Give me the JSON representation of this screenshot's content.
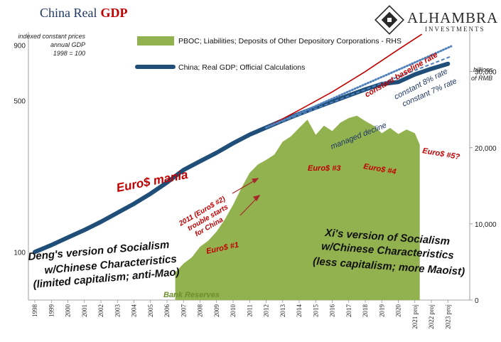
{
  "title": {
    "part1": "China Real",
    "part2": "GDP"
  },
  "logo": {
    "name": "ALHAMBRA",
    "sub": "INVESTMENTS"
  },
  "note_lines": [
    "indexed constant prices",
    "annual GDP",
    "1998 = 100"
  ],
  "right_axis_note": [
    "billions",
    "of RMB"
  ],
  "chart_data": {
    "type": "line",
    "title": "China Real GDP",
    "categories": [
      "1998",
      "1999",
      "2000",
      "2001",
      "2002",
      "2003",
      "2004",
      "2005",
      "2006",
      "2007",
      "2008",
      "2009",
      "2010",
      "2011",
      "2012",
      "2013",
      "2014",
      "2015",
      "2016",
      "2017",
      "2018",
      "2019",
      "2020",
      "2021 proj",
      "2022 proj",
      "2023 proj"
    ],
    "left_axis": {
      "scale": "log",
      "range": [
        60,
        1300
      ],
      "ticks": [
        100,
        500,
        900
      ]
    },
    "right_axis": {
      "range": [
        0,
        38000
      ],
      "ticks": [
        0,
        10000,
        20000,
        30000
      ]
    },
    "series": [
      {
        "name": "China; Real GDP; Official Calculations",
        "axis": "left",
        "color": "#1f4e79",
        "values": [
          100,
          107.6,
          116.7,
          126.3,
          137.8,
          151.6,
          166.9,
          185.9,
          209.4,
          239.2,
          262.3,
          287.1,
          317.6,
          347.9,
          375.2,
          404.4,
          434.0,
          464.0,
          494.9,
          528.0,
          563.0,
          596.0,
          609.0,
          660.0,
          701.0,
          739.0
        ]
      },
      {
        "name": "PBOC; Liabilities; Deposits of Other Depository Corporations - RHS",
        "axis": "right",
        "color": "#92b250",
        "type": "area",
        "x": [
          2006.5,
          2007,
          2007.5,
          2008,
          2008.5,
          2009,
          2009.5,
          2010,
          2010.5,
          2011,
          2011.5,
          2012,
          2012.5,
          2013,
          2013.5,
          2014,
          2014.5,
          2015,
          2015.5,
          2016,
          2016.5,
          2017,
          2017.5,
          2018,
          2018.5,
          2019,
          2019.5,
          2020,
          2020.5,
          2021,
          2021.3
        ],
        "values": [
          3600,
          4800,
          5600,
          7000,
          7800,
          9000,
          10600,
          12500,
          14700,
          16700,
          17800,
          18400,
          19100,
          20800,
          21500,
          22600,
          23700,
          21700,
          22900,
          22200,
          23300,
          23900,
          24200,
          23500,
          22900,
          21900,
          22600,
          21800,
          22400,
          21900,
          20400
        ]
      },
      {
        "name": "constant baseline rate",
        "axis": "left",
        "color": "#c00000",
        "x": [
          2012,
          2014,
          2016,
          2018,
          2020,
          2021.4
        ],
        "values": [
          375,
          452,
          548,
          680,
          860,
          1010
        ]
      },
      {
        "name": "constant 8% rate",
        "axis": "left",
        "color": "#4f81bd",
        "dash": "dot",
        "x": [
          2012,
          2014,
          2016,
          2018,
          2020,
          2022,
          2023.2
        ],
        "values": [
          375,
          437,
          510,
          595,
          694,
          810,
          890
        ]
      },
      {
        "name": "constant 7% rate",
        "axis": "left",
        "color": "#4f81bd",
        "dash": "dash",
        "x": [
          2012,
          2014,
          2016,
          2018,
          2020,
          2022,
          2023.2
        ],
        "values": [
          375,
          429,
          491,
          562,
          644,
          737,
          800
        ]
      }
    ],
    "legend": [
      {
        "label": "PBOC; Liabilities; Deposits of Other Depository Corporations - RHS",
        "kind": "area",
        "color": "#92b250"
      },
      {
        "label": "China; Real GDP; Official Calculations",
        "kind": "line",
        "color": "#1f4e79"
      }
    ],
    "annotations": {
      "euro_mania": "Euro$ mania",
      "euro1": "Euro$ #1",
      "euro2": [
        "2011 (Euro$ #2)",
        "trouble starts",
        "for China"
      ],
      "euro3": "Euro$ #3",
      "euro4": "Euro$ #4",
      "euro5": "Euro$ #5?",
      "baseline": "constant baseline rate",
      "rate8": "constant 8% rate",
      "rate7": "constant 7% rate",
      "managed": "managed decline",
      "bank_reserves": "Bank Reserves",
      "deng": [
        "Deng's version of Socialism",
        "w/Chinese Characteristics",
        "(limited capitalism; anti-Mao)"
      ],
      "xi": [
        "Xi's version of Socialism",
        "w/Chinese Characteristics",
        "(less capitalism; more Maoist)"
      ]
    }
  }
}
